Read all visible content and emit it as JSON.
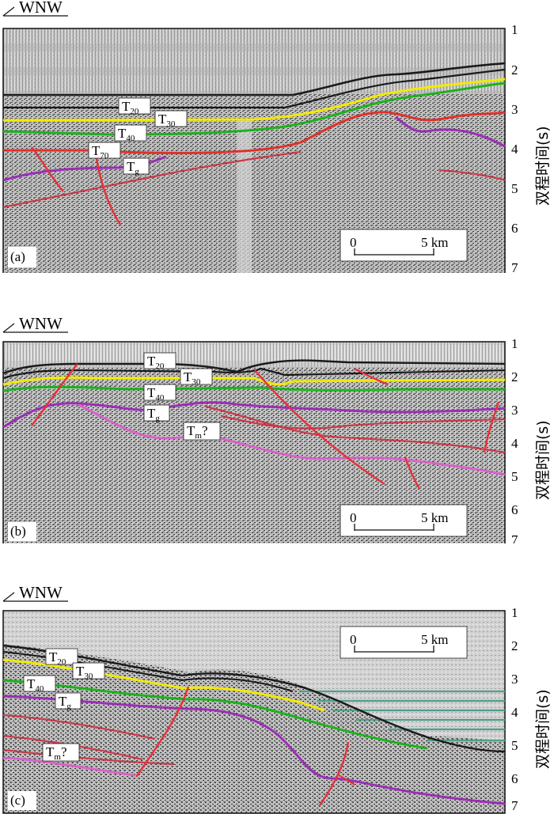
{
  "axis": {
    "title": "双程时间(s)",
    "ticks": [
      "1",
      "2",
      "3",
      "4",
      "5",
      "6",
      "7"
    ]
  },
  "colors": {
    "T20": "#1a1a1a",
    "T30": "#f2ea00",
    "T40": "#1bb21b",
    "T70": "#e0302a",
    "Tg": "#9b2fb5",
    "Tm": "#d763c8",
    "fault": "#e8303a",
    "deep_reflector": "#c83a4a",
    "teal": "#4f9f8c"
  },
  "panels": [
    {
      "tag": "(a)",
      "direction": "WNW",
      "scale": {
        "start": "0",
        "end": "5 km"
      },
      "labels": [
        {
          "key": "T20",
          "base": "T",
          "sub": "20"
        },
        {
          "key": "T30",
          "base": "T",
          "sub": "30"
        },
        {
          "key": "T40",
          "base": "T",
          "sub": "40"
        },
        {
          "key": "T70",
          "base": "T",
          "sub": "70"
        },
        {
          "key": "Tg",
          "base": "T",
          "sub": "g"
        }
      ]
    },
    {
      "tag": "(b)",
      "direction": "WNW",
      "scale": {
        "start": "0",
        "end": "5 km"
      },
      "labels": [
        {
          "key": "T20",
          "base": "T",
          "sub": "20"
        },
        {
          "key": "T30",
          "base": "T",
          "sub": "30"
        },
        {
          "key": "T40",
          "base": "T",
          "sub": "40"
        },
        {
          "key": "Tg",
          "base": "T",
          "sub": "g"
        },
        {
          "key": "Tm",
          "base": "T",
          "sub": "m",
          "suffix": "?"
        }
      ]
    },
    {
      "tag": "(c)",
      "direction": "WNW",
      "scale": {
        "start": "0",
        "end": "5 km"
      },
      "labels": [
        {
          "key": "T20",
          "base": "T",
          "sub": "20"
        },
        {
          "key": "T30",
          "base": "T",
          "sub": "30"
        },
        {
          "key": "T40",
          "base": "T",
          "sub": "40"
        },
        {
          "key": "Tg",
          "base": "T",
          "sub": "g"
        },
        {
          "key": "Tm",
          "base": "T",
          "sub": "m",
          "suffix": "?"
        }
      ]
    }
  ]
}
